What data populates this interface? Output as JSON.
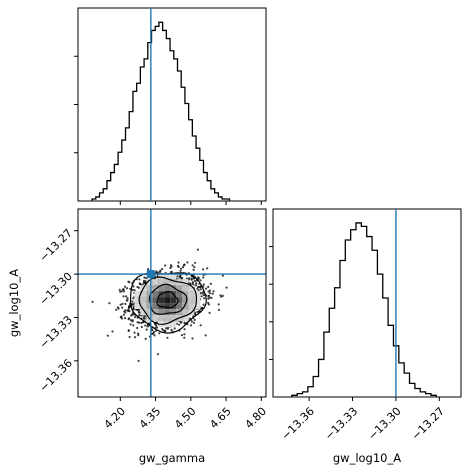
{
  "chart_data": [
    {
      "type": "step-histogram",
      "panel": "gw_gamma-marginal",
      "xlim": [
        4.02,
        4.82
      ],
      "bin_edges_start": 4.08,
      "bin_width": 0.0158,
      "counts": [
        1,
        2,
        4,
        6,
        10,
        14,
        18,
        24,
        30,
        36,
        44,
        54,
        58,
        66,
        70,
        78,
        84,
        86,
        88,
        84,
        80,
        74,
        70,
        64,
        56,
        48,
        40,
        32,
        26,
        20,
        14,
        10,
        6,
        4,
        2,
        1,
        1
      ],
      "truth": 4.33,
      "color": "#1f77b4"
    },
    {
      "type": "step-histogram",
      "panel": "gw_log10_A-marginal",
      "xlim": [
        -13.385,
        -13.255
      ],
      "bin_edges_start": -13.372,
      "bin_width": 0.0037,
      "counts": [
        1,
        2,
        3,
        6,
        12,
        22,
        38,
        52,
        64,
        80,
        92,
        98,
        102,
        100,
        94,
        86,
        72,
        58,
        42,
        30,
        20,
        14,
        8,
        5,
        3,
        2,
        1
      ],
      "truth": -13.3,
      "color": "#1f77b4",
      "xticks": [
        "−13.36",
        "−13.33",
        "−13.30",
        "−13.27"
      ],
      "xtick_values": [
        -13.36,
        -13.33,
        -13.3,
        -13.27
      ],
      "xlabel": "gw_log10_A"
    },
    {
      "type": "scatter-contour",
      "panel": "joint",
      "xlim": [
        4.02,
        4.82
      ],
      "ylim": [
        -13.385,
        -13.255
      ],
      "center": [
        4.4,
        -13.318
      ],
      "spread": [
        0.075,
        0.0095
      ],
      "truth": [
        4.33,
        -13.3
      ],
      "contour_levels": [
        "0.5-sigma",
        "1-sigma",
        "1.5-sigma",
        "2-sigma"
      ],
      "xticks": [
        "4.20",
        "4.35",
        "4.50",
        "4.65",
        "4.80"
      ],
      "xtick_values": [
        4.2,
        4.35,
        4.5,
        4.65,
        4.8
      ],
      "yticks": [
        "−13.27",
        "−13.30",
        "−13.33",
        "−13.36"
      ],
      "ytick_values": [
        -13.27,
        -13.3,
        -13.33,
        -13.36
      ],
      "xlabel": "gw_gamma",
      "ylabel": "gw_log10_A",
      "truth_color": "#1f77b4"
    }
  ]
}
